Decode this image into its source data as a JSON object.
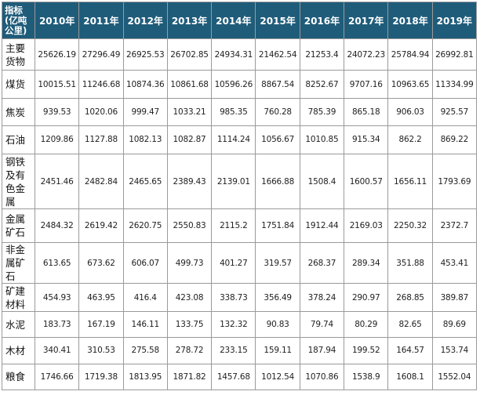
{
  "table": {
    "corner_label": "指标(亿吨公里)",
    "years": [
      "2010年",
      "2011年",
      "2012年",
      "2013年",
      "2014年",
      "2015年",
      "2016年",
      "2017年",
      "2018年",
      "2019年"
    ],
    "rows": [
      {
        "label": "主要货物",
        "values": [
          "25626.19",
          "27296.49",
          "26925.53",
          "26702.85",
          "24934.31",
          "21462.54",
          "21253.4",
          "24072.23",
          "25784.94",
          "26992.81"
        ]
      },
      {
        "label": "煤货",
        "values": [
          "10015.51",
          "11246.68",
          "10874.36",
          "10861.68",
          "10596.26",
          "8867.54",
          "8252.67",
          "9707.16",
          "10963.65",
          "11334.99"
        ]
      },
      {
        "label": "焦炭",
        "values": [
          "939.53",
          "1020.06",
          "999.47",
          "1033.21",
          "985.35",
          "760.28",
          "785.39",
          "865.18",
          "906.03",
          "925.57"
        ]
      },
      {
        "label": "石油",
        "values": [
          "1209.86",
          "1127.88",
          "1082.13",
          "1082.87",
          "1114.24",
          "1056.67",
          "1010.85",
          "915.34",
          "862.2",
          "869.22"
        ]
      },
      {
        "label": "钢铁及有色金属",
        "values": [
          "2451.46",
          "2482.84",
          "2465.65",
          "2389.43",
          "2139.01",
          "1666.88",
          "1508.4",
          "1600.57",
          "1656.11",
          "1793.69"
        ]
      },
      {
        "label": "金属矿石",
        "values": [
          "2484.32",
          "2619.42",
          "2620.75",
          "2550.83",
          "2115.2",
          "1751.84",
          "1912.44",
          "2169.03",
          "2250.32",
          "2372.7"
        ]
      },
      {
        "label": "非金属矿石",
        "values": [
          "613.65",
          "673.62",
          "606.07",
          "499.73",
          "401.27",
          "319.57",
          "268.37",
          "289.34",
          "351.88",
          "453.41"
        ]
      },
      {
        "label": "矿建材料",
        "values": [
          "454.93",
          "463.95",
          "416.4",
          "423.08",
          "338.73",
          "356.49",
          "378.24",
          "290.97",
          "268.85",
          "389.87"
        ]
      },
      {
        "label": "水泥",
        "values": [
          "183.73",
          "167.19",
          "146.11",
          "133.75",
          "132.32",
          "90.83",
          "79.74",
          "80.29",
          "82.65",
          "89.69"
        ]
      },
      {
        "label": "木材",
        "values": [
          "340.41",
          "310.53",
          "275.58",
          "278.72",
          "233.15",
          "159.11",
          "187.94",
          "199.52",
          "164.57",
          "153.74"
        ]
      },
      {
        "label": "粮食",
        "values": [
          "1746.66",
          "1719.38",
          "1813.95",
          "1871.82",
          "1457.68",
          "1012.54",
          "1070.86",
          "1538.9",
          "1608.1",
          "1552.04"
        ]
      }
    ]
  }
}
